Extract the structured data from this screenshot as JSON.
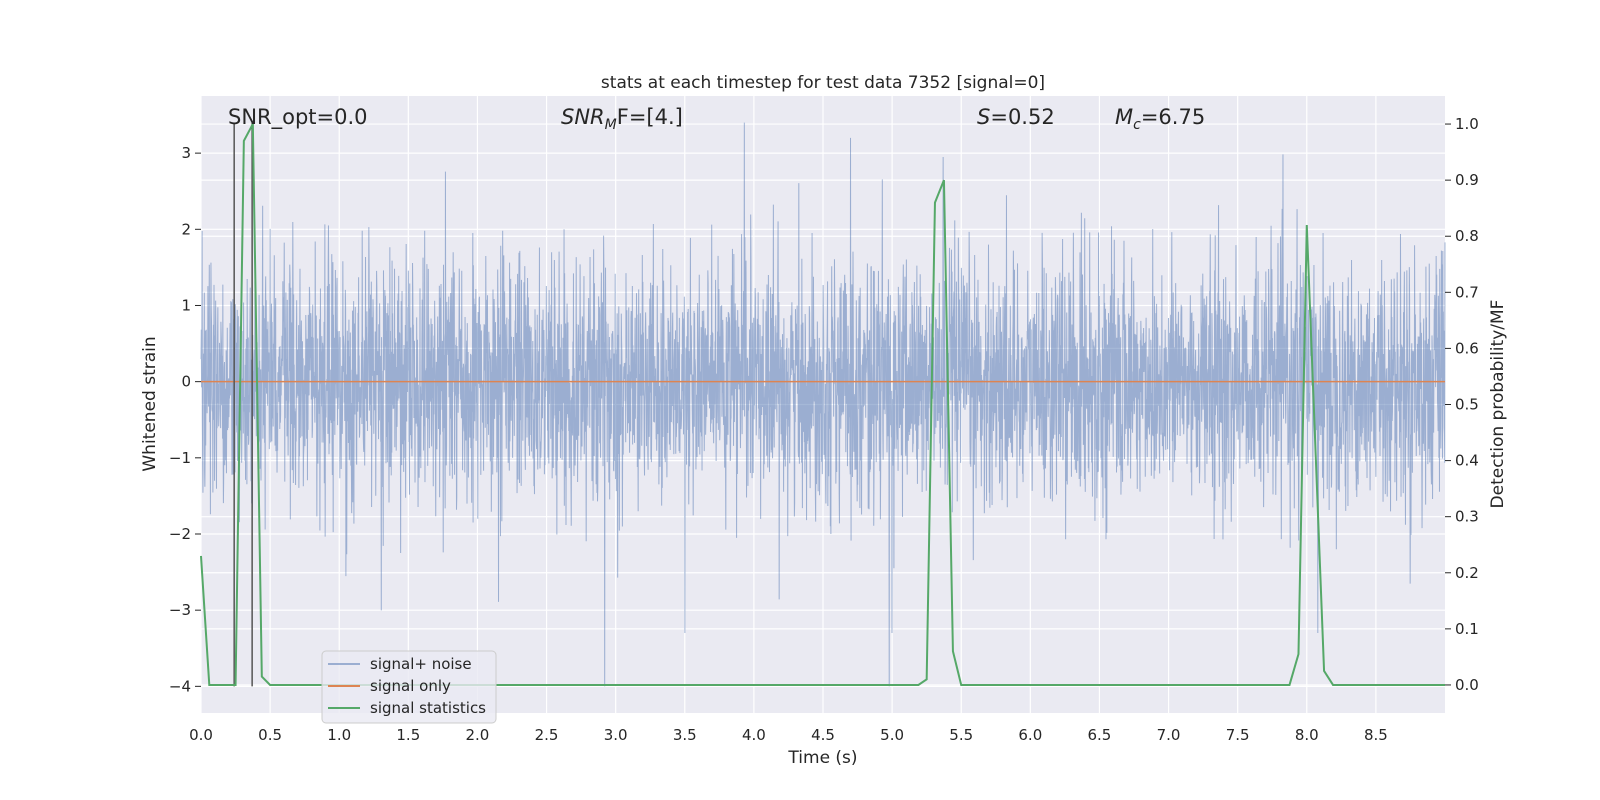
{
  "chart_data": {
    "type": "line",
    "title": "stats at each timestep for test data 7352 [signal=0]",
    "xlabel": "Time (s)",
    "ylabel": "Whitened strain",
    "ylabel_right": "Detection probability/MF",
    "xlim": [
      0.0,
      9.0
    ],
    "ylim": [
      -4.35,
      3.75
    ],
    "ylim_right": [
      -0.05,
      1.05
    ],
    "xticks": [
      0.0,
      0.5,
      1.0,
      1.5,
      2.0,
      2.5,
      3.0,
      3.5,
      4.0,
      4.5,
      5.0,
      5.5,
      6.0,
      6.5,
      7.0,
      7.5,
      8.0,
      8.5
    ],
    "xtick_labels": [
      "0.0",
      "0.5",
      "1.0",
      "1.5",
      "2.0",
      "2.5",
      "3.0",
      "3.5",
      "4.0",
      "4.5",
      "5.0",
      "5.5",
      "6.0",
      "6.5",
      "7.0",
      "7.5",
      "8.0",
      "8.5"
    ],
    "yticks": [
      -4,
      -3,
      -2,
      -1,
      0,
      1,
      2,
      3
    ],
    "ytick_labels": [
      "−4",
      "−3",
      "−2",
      "−1",
      "0",
      "1",
      "2",
      "3"
    ],
    "yticks_right": [
      0.0,
      0.1,
      0.2,
      0.3,
      0.4,
      0.5,
      0.6,
      0.7,
      0.8,
      0.9,
      1.0
    ],
    "ytick_right_labels": [
      "0.0",
      "0.1",
      "0.2",
      "0.3",
      "0.4",
      "0.5",
      "0.6",
      "0.7",
      "0.8",
      "0.9",
      "1.0"
    ],
    "grid": true,
    "legend_position": "lower-left",
    "annotations": {
      "snr_opt": "SNR_opt=0.0",
      "snr_mf_main": "SNR",
      "snr_mf_sub": "M",
      "snr_mf_rest": "F=[4.]",
      "s_main": "S",
      "s_rest": "=0.52",
      "mc_main": "M",
      "mc_sub": "c",
      "mc_rest": "=6.75"
    },
    "series": [
      {
        "name": "signal+ noise",
        "color": "#4c72b0",
        "opacity": 0.5,
        "axis": "left",
        "description": "whitened noise strain, roughly unit-variance, sampled densely over 0-9 s",
        "sample_count": 4500,
        "envelope": [
          -4.0,
          3.4
        ],
        "notable_peaks": [
          {
            "x": 3.93,
            "y": 3.4
          },
          {
            "x": 4.7,
            "y": 3.2
          },
          {
            "x": 5.37,
            "y": 2.95
          },
          {
            "x": 2.92,
            "y": -4.0
          },
          {
            "x": 4.98,
            "y": -4.0
          },
          {
            "x": 5.0,
            "y": -3.3
          },
          {
            "x": 3.5,
            "y": -3.3
          },
          {
            "x": 8.08,
            "y": -3.3
          }
        ]
      },
      {
        "name": "signal only",
        "color": "#dd8452",
        "axis": "left",
        "x": [
          0.0,
          9.0
        ],
        "y": [
          0.0,
          0.0
        ]
      },
      {
        "name": "signal statistics",
        "color": "#55a868",
        "axis": "right",
        "x": [
          0.0,
          0.06,
          0.25,
          0.31,
          0.375,
          0.44,
          0.5,
          5.19,
          5.25,
          5.31,
          5.375,
          5.44,
          5.5,
          7.875,
          7.94,
          8.0,
          8.125,
          8.19,
          9.0
        ],
        "y": [
          0.23,
          0.0,
          0.0,
          0.97,
          1.0,
          0.015,
          0.0,
          0.0,
          0.01,
          0.86,
          0.9,
          0.06,
          0.0,
          0.0,
          0.055,
          0.82,
          0.025,
          0.0,
          0.0
        ]
      }
    ],
    "vertical_markers": [
      {
        "x": 0.24,
        "ymin": -4.0,
        "ymax": 3.4,
        "color": "#555555"
      },
      {
        "x": 0.37,
        "ymin": -4.0,
        "ymax": 3.4,
        "color": "#555555"
      }
    ]
  }
}
